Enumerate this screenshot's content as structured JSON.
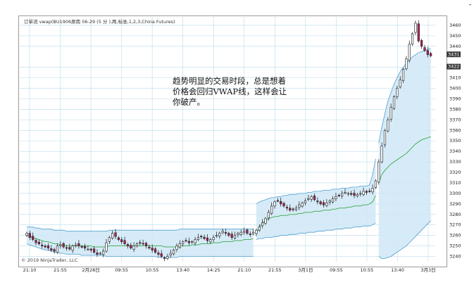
{
  "header": {
    "title": "订单流 vwap(BU1906原南 06-29 (5 分 ),两,标准,1,2,3,China Futures)"
  },
  "annotation": {
    "line1": "趋势明显的交易时段，总是想着",
    "line2": "价格会回归VWAP线，这样会让",
    "line3": "你破产。"
  },
  "footer": {
    "copyright": "© 2019 NinjaTrader, LLC"
  },
  "corner_mark": "-",
  "colors": {
    "up": "#ffffff",
    "down": "#b3235a",
    "band_fill": "#cfe8f6",
    "band_line": "#4f9fd0",
    "vwap": "#3aa84a",
    "grid": "#b9dcec"
  },
  "chart_data": {
    "type": "candlestick",
    "title": "",
    "xlabel": "",
    "ylabel": "",
    "ylim": [
      3235,
      3468
    ],
    "y_ticks": [
      3240,
      3250,
      3260,
      3270,
      3280,
      3290,
      3300,
      3310,
      3320,
      3330,
      3340,
      3350,
      3360,
      3370,
      3380,
      3390,
      3400,
      3410,
      3420,
      3440,
      3450,
      3460
    ],
    "x_labels": [
      "21:10",
      "21:55",
      "2月28日",
      "09:55",
      "10:55",
      "13:40",
      "14:25",
      "21:10",
      "21:55",
      "3月1日",
      "09:55",
      "10:55",
      "13:40",
      "3月3日"
    ],
    "price_tags": [
      "3431",
      "3422"
    ],
    "series": [
      {
        "name": "",
        "close": [
          3262,
          3258,
          3256,
          3253,
          3252,
          3250,
          3249,
          3248,
          3246,
          3245,
          3250,
          3251,
          3249,
          3248,
          3247,
          3250,
          3251,
          3250,
          3249,
          3248,
          3247,
          3246,
          3244,
          3242,
          3243,
          3245,
          3253,
          3258,
          3262,
          3259,
          3256,
          3254,
          3252,
          3250,
          3248,
          3250,
          3252,
          3253,
          3252,
          3250,
          3248,
          3246,
          3244,
          3242,
          3240,
          3238,
          3240,
          3243,
          3246,
          3250,
          3252,
          3254,
          3255,
          3253,
          3254,
          3256,
          3258,
          3259,
          3257,
          3255,
          3256,
          3258,
          3260,
          3262,
          3264,
          3262,
          3260,
          3258,
          3260,
          3262,
          3263,
          3264,
          3262,
          3261,
          3263,
          3265,
          3268,
          3272,
          3276,
          3282,
          3288,
          3292,
          3293,
          3290,
          3288,
          3286,
          3284,
          3285,
          3286,
          3289,
          3291,
          3293,
          3295,
          3297,
          3294,
          3292,
          3290,
          3289,
          3291,
          3293,
          3295,
          3297,
          3298,
          3300,
          3301,
          3300,
          3299,
          3298,
          3299,
          3300,
          3302,
          3301,
          3302,
          3305,
          3312,
          3330,
          3345,
          3360,
          3370,
          3382,
          3392,
          3400,
          3408,
          3418,
          3428,
          3442,
          3452,
          3462,
          3445,
          3440,
          3436,
          3432,
          3431
        ]
      },
      {
        "name": "",
        "vwap": [
          3260,
          3259,
          3258,
          3257,
          3256,
          3255,
          3254,
          3254,
          3253,
          3252,
          3252,
          3251,
          3251,
          3250,
          3250,
          3250,
          3250,
          3250,
          3250,
          3250,
          3250,
          3250,
          3249,
          3249,
          3249,
          3249,
          3249,
          3250,
          3250,
          3250,
          3250,
          3250,
          3250,
          3250,
          3250,
          3250,
          3250,
          3250,
          3250,
          3250,
          3250,
          3250,
          3250,
          3250,
          3250,
          3249,
          3249,
          3249,
          3249,
          3249,
          3250,
          3250,
          3250,
          3250,
          3251,
          3251,
          3251,
          3252,
          3252,
          3252,
          3252,
          3253,
          3253,
          3253,
          3254,
          3254,
          3254,
          3254,
          3255,
          3255,
          3255,
          3256,
          3256,
          3256,
          3257,
          3262,
          3268,
          3272,
          3274,
          3276,
          3277,
          3278,
          3278,
          3279,
          3279,
          3279,
          3280,
          3280,
          3280,
          3281,
          3281,
          3282,
          3282,
          3282,
          3283,
          3283,
          3283,
          3284,
          3284,
          3284,
          3285,
          3285,
          3286,
          3286,
          3286,
          3287,
          3287,
          3288,
          3288,
          3288,
          3289,
          3289,
          3290,
          3292,
          3298,
          3310,
          3318,
          3322,
          3325,
          3328,
          3330,
          3332,
          3334,
          3336,
          3338,
          3341,
          3344,
          3347,
          3349,
          3351,
          3352,
          3353,
          3354
        ]
      },
      {
        "name": "",
        "upper": [
          3268,
          3268,
          3268,
          3267,
          3267,
          3266,
          3266,
          3266,
          3266,
          3265,
          3265,
          3265,
          3265,
          3264,
          3264,
          3264,
          3264,
          3264,
          3264,
          3264,
          3264,
          3264,
          3264,
          3264,
          3264,
          3264,
          3264,
          3265,
          3265,
          3265,
          3265,
          3265,
          3265,
          3265,
          3265,
          3265,
          3265,
          3265,
          3265,
          3265,
          3265,
          3265,
          3265,
          3265,
          3265,
          3265,
          3265,
          3265,
          3265,
          3265,
          3266,
          3266,
          3266,
          3266,
          3266,
          3266,
          3266,
          3266,
          3266,
          3266,
          3266,
          3266,
          3266,
          3266,
          3266,
          3266,
          3266,
          3266,
          3266,
          3266,
          3266,
          3266,
          3266,
          3266,
          3266,
          3290,
          3292,
          3293,
          3294,
          3295,
          3296,
          3296,
          3297,
          3297,
          3298,
          3298,
          3299,
          3299,
          3299,
          3300,
          3300,
          3300,
          3301,
          3301,
          3302,
          3302,
          3302,
          3303,
          3303,
          3303,
          3304,
          3304,
          3304,
          3305,
          3305,
          3305,
          3306,
          3306,
          3306,
          3307,
          3307,
          3307,
          3308,
          3318,
          3333,
          3348,
          3363,
          3376,
          3388,
          3396,
          3404,
          3410,
          3416,
          3420,
          3424,
          3427,
          3430,
          3432,
          3434,
          3435,
          3436,
          3437,
          3438
        ]
      },
      {
        "name": "",
        "lower": [
          3252,
          3251,
          3250,
          3249,
          3248,
          3247,
          3246,
          3246,
          3245,
          3244,
          3244,
          3243,
          3243,
          3242,
          3242,
          3242,
          3242,
          3242,
          3241,
          3241,
          3241,
          3241,
          3241,
          3241,
          3241,
          3241,
          3240,
          3240,
          3240,
          3240,
          3240,
          3240,
          3240,
          3240,
          3240,
          3240,
          3240,
          3240,
          3240,
          3240,
          3240,
          3240,
          3240,
          3239,
          3239,
          3239,
          3239,
          3239,
          3239,
          3239,
          3240,
          3240,
          3240,
          3240,
          3240,
          3240,
          3240,
          3240,
          3240,
          3240,
          3240,
          3240,
          3240,
          3240,
          3240,
          3240,
          3240,
          3240,
          3240,
          3240,
          3240,
          3240,
          3240,
          3240,
          3240,
          3256,
          3257,
          3257,
          3258,
          3258,
          3258,
          3259,
          3259,
          3260,
          3260,
          3260,
          3261,
          3261,
          3261,
          3262,
          3262,
          3262,
          3263,
          3263,
          3263,
          3264,
          3264,
          3264,
          3265,
          3265,
          3265,
          3266,
          3266,
          3266,
          3267,
          3267,
          3267,
          3268,
          3268,
          3268,
          3269,
          3269,
          3269,
          3270,
          3272,
          3240,
          3238,
          3238,
          3239,
          3240,
          3242,
          3244,
          3246,
          3248,
          3250,
          3253,
          3256,
          3259,
          3262,
          3265,
          3268,
          3271,
          3274
        ]
      }
    ]
  }
}
